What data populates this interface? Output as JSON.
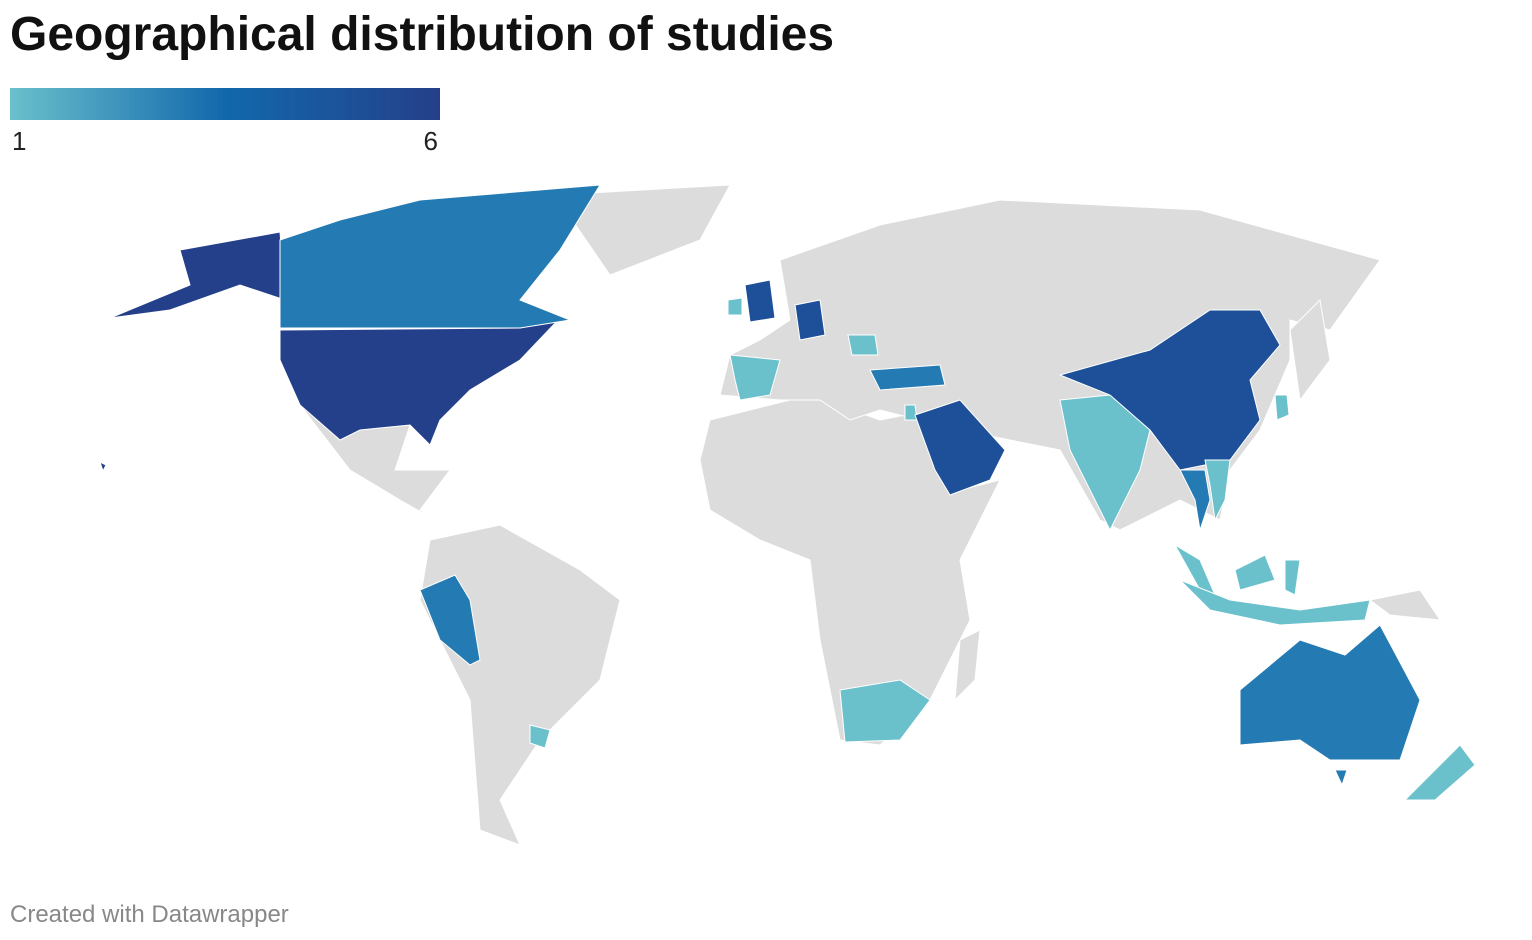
{
  "chart_data": {
    "type": "choropleth",
    "title": "Geographical distribution of studies",
    "scale": [
      1,
      6
    ],
    "ticks": [
      1,
      6
    ],
    "colors": [
      "#6ac0cb",
      "#1268ac",
      "#24408a"
    ],
    "values": [
      6,
      3,
      3,
      1,
      1,
      1,
      5,
      1,
      5,
      1,
      3,
      1,
      5,
      1,
      5,
      1,
      3,
      1,
      1,
      1,
      3,
      1
    ],
    "footer": "Created with Datawrapper"
  }
}
